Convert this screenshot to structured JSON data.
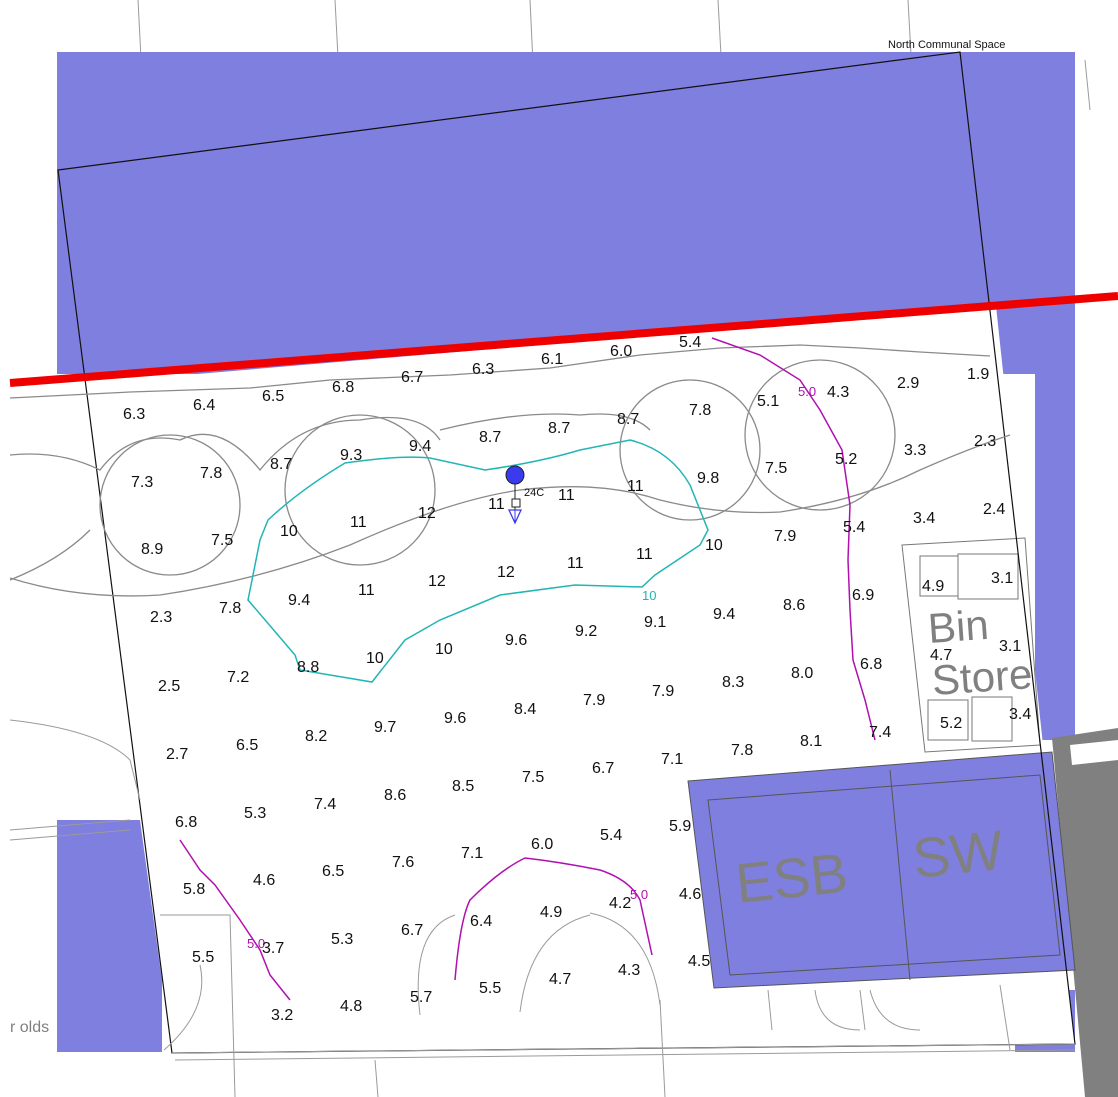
{
  "title": "North Communal Space",
  "labels": {
    "bin_line1": "Bin",
    "bin_line2": "Store",
    "esb": "ESB",
    "sw": "SW",
    "partial_left": "r olds",
    "luminaire_id": "24C"
  },
  "colors": {
    "shaded_zone": "#7f7fdf",
    "boundary_red": "#ee0000",
    "contour_10": "#22b5b5",
    "contour_5": "#b010b0",
    "linework": "#8a8a8a",
    "text": "#111111",
    "luminaire": "#3a3aee"
  },
  "contours": [
    {
      "label": "10",
      "color": "cyan"
    },
    {
      "label": "5.0",
      "color": "magenta"
    },
    {
      "label": "5.0",
      "color": "magenta"
    },
    {
      "label": "5.0",
      "color": "magenta"
    }
  ],
  "grid_values": [
    "5.4",
    "6.0",
    "6.1",
    "6.3",
    "6.7",
    "6.8",
    "6.5",
    "6.4",
    "6.3",
    "1.9",
    "2.9",
    "4.3",
    "5.1",
    "7.8",
    "8.7",
    "8.7",
    "8.7",
    "9.4",
    "9.3",
    "8.7",
    "7.8",
    "7.3",
    "2.3",
    "3.3",
    "5.2",
    "7.5",
    "9.8",
    "11",
    "11",
    "11",
    "12",
    "11",
    "10",
    "7.5",
    "8.9",
    "2.4",
    "3.4",
    "5.4",
    "7.9",
    "10",
    "11",
    "11",
    "12",
    "12",
    "11",
    "9.4",
    "7.8",
    "2.3",
    "3.1",
    "4.9",
    "6.9",
    "8.6",
    "9.4",
    "9.1",
    "9.2",
    "9.6",
    "10",
    "10",
    "8.8",
    "7.2",
    "2.5",
    "3.1",
    "4.7",
    "6.8",
    "8.0",
    "8.3",
    "7.9",
    "7.9",
    "8.4",
    "9.6",
    "9.7",
    "8.2",
    "6.5",
    "2.7",
    "3.4",
    "5.2",
    "7.4",
    "8.1",
    "7.8",
    "7.1",
    "6.7",
    "7.5",
    "8.5",
    "8.6",
    "7.4",
    "5.3",
    "6.8",
    "5.9",
    "5.4",
    "6.0",
    "7.1",
    "7.6",
    "6.5",
    "4.6",
    "5.8",
    "4.6",
    "4.2",
    "4.9",
    "6.4",
    "6.7",
    "5.3",
    "3.7",
    "5.5",
    "4.5",
    "4.3",
    "4.7",
    "5.5",
    "5.7",
    "4.8",
    "3.2"
  ]
}
